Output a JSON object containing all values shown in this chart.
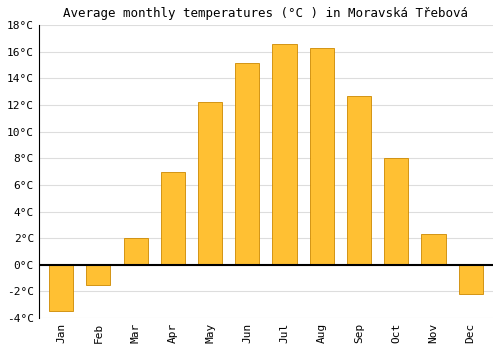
{
  "title": "Average monthly temperatures (°C ) in Moravská Třebová",
  "months": [
    "Jan",
    "Feb",
    "Mar",
    "Apr",
    "May",
    "Jun",
    "Jul",
    "Aug",
    "Sep",
    "Oct",
    "Nov",
    "Dec"
  ],
  "values": [
    -3.5,
    -1.5,
    2.0,
    7.0,
    12.2,
    15.2,
    16.6,
    16.3,
    12.7,
    8.0,
    2.3,
    -2.2
  ],
  "bar_color": "#FFC033",
  "bar_edge_color": "#CC8800",
  "background_color": "#FFFFFF",
  "grid_color": "#DDDDDD",
  "ylim": [
    -4,
    18
  ],
  "yticks": [
    -4,
    -2,
    0,
    2,
    4,
    6,
    8,
    10,
    12,
    14,
    16,
    18
  ],
  "title_fontsize": 9,
  "tick_fontsize": 8,
  "font_family": "monospace"
}
